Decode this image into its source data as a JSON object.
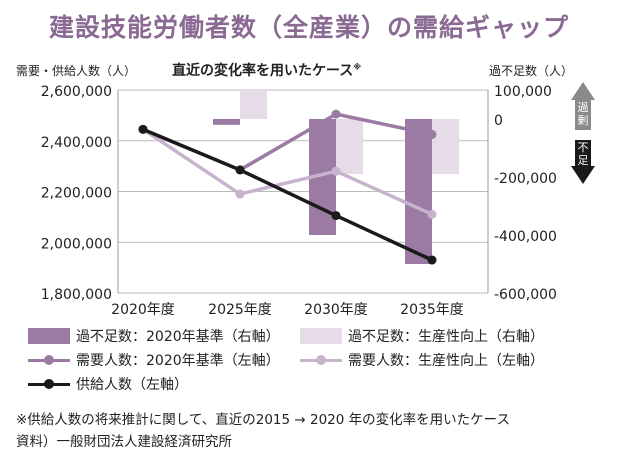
{
  "title": "建設技能労働者数（全産業）の需給ギャップ",
  "left_axis_label": "需要・供給人数（人）",
  "right_axis_label": "過不足数（人）",
  "case_label": "直近の変化率を用いたケース",
  "case_mark": "※",
  "arrow_up_label": "過剰",
  "arrow_down_label": "不足",
  "legend": [
    {
      "label": "過不足数：2020年基準（右軸）",
      "kind": "rect",
      "color": "#9b7aa3"
    },
    {
      "label": "過不足数：生産性向上（右軸）",
      "kind": "rect",
      "color": "#e5dce8"
    },
    {
      "label": "需要人数：2020年基準（左軸）",
      "kind": "line",
      "color": "#9b7aa3"
    },
    {
      "label": "需要人数：生産性向上（左軸）",
      "kind": "line",
      "color": "#c7b3cc"
    },
    {
      "label": "供給人数（左軸）",
      "kind": "line",
      "color": "#1a1a1a"
    }
  ],
  "note_line1": "※供給人数の将来推計に関して、直近の2015 → 2020 年の変化率を用いたケース",
  "note_line2": "資料）一般財団法人建設経済研究所",
  "chart_data": {
    "type": "bar",
    "categories": [
      "2020年度",
      "2025年度",
      "2030年度",
      "2035年度"
    ],
    "left_axis": {
      "ticks": [
        1800000,
        2000000,
        2200000,
        2400000,
        2600000
      ],
      "tick_labels": [
        "1,800,000",
        "2,000,000",
        "2,200,000",
        "2,400,000",
        "2,600,000"
      ],
      "ylim": [
        1800000,
        2600000
      ]
    },
    "right_axis": {
      "ticks": [
        -600000,
        -400000,
        -200000,
        0,
        100000
      ],
      "tick_labels": [
        "-600,000",
        "-400,000",
        "-200,000",
        "0",
        "100,000"
      ],
      "ylim": [
        -600000,
        100000
      ]
    },
    "bars": [
      {
        "name": "過不足数：2020年基準（右軸）",
        "color": "#9b7aa3",
        "axis": "right",
        "values": [
          0,
          -20000,
          -400000,
          -500000
        ]
      },
      {
        "name": "過不足数：生産性向上（右軸）",
        "color": "#e5dce8",
        "axis": "right",
        "values": [
          0,
          100000,
          -190000,
          -190000
        ]
      }
    ],
    "lines": [
      {
        "name": "需要人数：2020年基準（左軸）",
        "color": "#9b7aa3",
        "axis": "left",
        "values": [
          2445000,
          2285000,
          2505000,
          2425000
        ]
      },
      {
        "name": "需要人数：生産性向上（左軸）",
        "color": "#c7b3cc",
        "axis": "left",
        "values": [
          2445000,
          2190000,
          2280000,
          2110000
        ]
      },
      {
        "name": "供給人数（左軸）",
        "color": "#1a1a1a",
        "axis": "left",
        "values": [
          2445000,
          2285000,
          2105000,
          1930000
        ]
      }
    ],
    "grid": true
  }
}
